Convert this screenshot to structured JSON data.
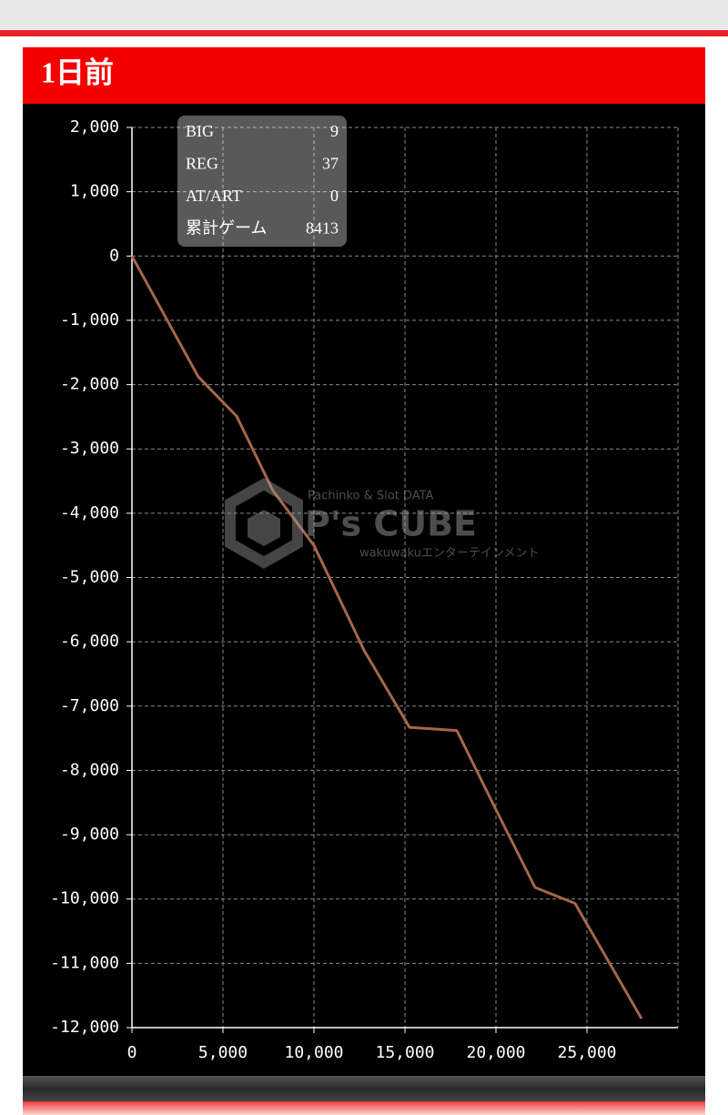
{
  "header": {
    "title": "1日前"
  },
  "stats": [
    {
      "label": "BIG",
      "value": "9"
    },
    {
      "label": "REG",
      "value": "37"
    },
    {
      "label": "AT/ART",
      "value": "0"
    },
    {
      "label": "累計ゲーム",
      "value": "8413"
    }
  ],
  "watermark": {
    "tagline": "Pachinko & Slot DATA",
    "brand": "P's CUBE",
    "company": "wakuwakuエンターテインメント"
  },
  "chart_data": {
    "type": "line",
    "x": [
      0,
      3650,
      5750,
      7750,
      10000,
      12750,
      15250,
      17850,
      20000,
      22150,
      24350,
      28000
    ],
    "values": [
      0,
      -1880,
      -2490,
      -3650,
      -4500,
      -6130,
      -7330,
      -7380,
      -8610,
      -9820,
      -10070,
      -11860
    ],
    "color": "#a5674b",
    "xlim": [
      0,
      30000
    ],
    "xticks": [
      0,
      {
        "value": 5000,
        "label": "5,000"
      },
      {
        "value": 10000,
        "label": "10,000"
      },
      {
        "value": 15000,
        "label": "15,000"
      },
      {
        "value": 20000,
        "label": "20,000"
      },
      {
        "value": 25000,
        "label": "25,000"
      }
    ],
    "ylim": [
      -12000,
      2000
    ],
    "yticks": [
      {
        "value": 2000,
        "label": "2,000"
      },
      {
        "value": 1000,
        "label": "1,000"
      },
      0,
      {
        "value": -1000,
        "label": "-1,000"
      },
      {
        "value": -2000,
        "label": "-2,000"
      },
      {
        "value": -3000,
        "label": "-3,000"
      },
      {
        "value": -4000,
        "label": "-4,000"
      },
      {
        "value": -5000,
        "label": "-5,000"
      },
      {
        "value": -6000,
        "label": "-6,000"
      },
      {
        "value": -7000,
        "label": "-7,000"
      },
      {
        "value": -8000,
        "label": "-8,000"
      },
      {
        "value": -9000,
        "label": "-9,000"
      },
      {
        "value": -10000,
        "label": "-10,000"
      },
      {
        "value": -11000,
        "label": "-11,000"
      },
      {
        "value": -12000,
        "label": "-12,000"
      }
    ],
    "grid": true
  }
}
